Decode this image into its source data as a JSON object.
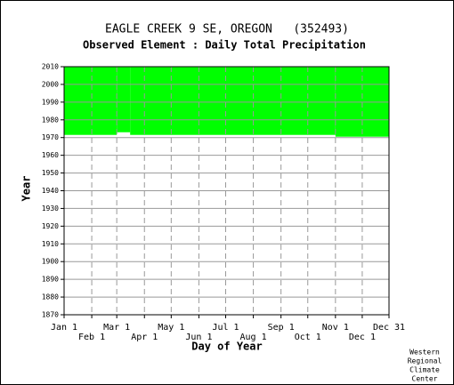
{
  "chart_data": {
    "type": "availability",
    "title": "EAGLE CREEK 9 SE, OREGON   (352493)",
    "subtitle": "Observed Element : Daily Total Precipitation",
    "x_label": "Day of Year",
    "y_label": "Year",
    "xlim": [
      1,
      365
    ],
    "ylim": [
      1870,
      2010
    ],
    "xticks": [
      {
        "value": 1,
        "label": "Jan 1"
      },
      {
        "value": 32,
        "label": "Feb 1"
      },
      {
        "value": 60,
        "label": "Mar 1"
      },
      {
        "value": 91,
        "label": "Apr 1"
      },
      {
        "value": 121,
        "label": "May 1"
      },
      {
        "value": 152,
        "label": "Jun 1"
      },
      {
        "value": 182,
        "label": "Jul 1"
      },
      {
        "value": 213,
        "label": "Aug 1"
      },
      {
        "value": 244,
        "label": "Sep 1"
      },
      {
        "value": 274,
        "label": "Oct 1"
      },
      {
        "value": 305,
        "label": "Nov 1"
      },
      {
        "value": 335,
        "label": "Dec 1"
      },
      {
        "value": 365,
        "label": "Dec 31"
      }
    ],
    "yticks": [
      1870,
      1880,
      1890,
      1900,
      1910,
      1920,
      1930,
      1940,
      1950,
      1960,
      1970,
      1980,
      1990,
      2000,
      2010
    ],
    "color": "#00ff00",
    "coverage": [
      {
        "x0": 1,
        "x1": 60,
        "y0": 1971.5,
        "y1": 2010
      },
      {
        "x0": 60,
        "x1": 75,
        "y0": 1973,
        "y1": 2010
      },
      {
        "x0": 75,
        "x1": 305,
        "y0": 1971.5,
        "y1": 2010
      },
      {
        "x0": 305,
        "x1": 365,
        "y0": 1970.5,
        "y1": 2010
      }
    ],
    "credit": [
      "Western",
      "Regional",
      "Climate",
      "Center"
    ]
  }
}
